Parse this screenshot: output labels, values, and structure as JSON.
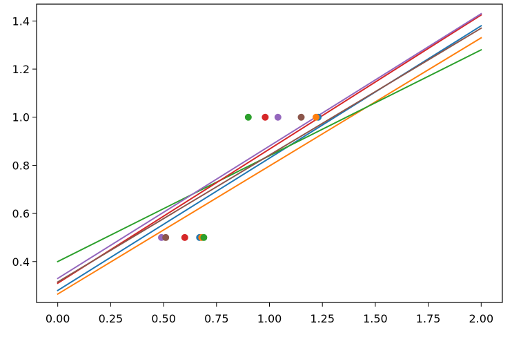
{
  "chart_data": {
    "type": "scatter",
    "title": "",
    "xlabel": "",
    "ylabel": "",
    "xlim": [
      -0.1,
      2.1
    ],
    "ylim": [
      0.23,
      1.47
    ],
    "grid": false,
    "legend": "none",
    "x_ticks": [
      0.0,
      0.25,
      0.5,
      0.75,
      1.0,
      1.25,
      1.5,
      1.75,
      2.0
    ],
    "x_tick_labels": [
      "0.00",
      "0.25",
      "0.50",
      "0.75",
      "1.00",
      "1.25",
      "1.50",
      "1.75",
      "2.00"
    ],
    "y_ticks": [
      0.4,
      0.6,
      0.8,
      1.0,
      1.2,
      1.4
    ],
    "y_tick_labels": [
      "0.4",
      "0.6",
      "0.8",
      "1.0",
      "1.2",
      "1.4"
    ],
    "series": [
      {
        "color": "#1f77b4",
        "line": {
          "x": [
            0,
            2
          ],
          "y": [
            0.28,
            1.38
          ]
        },
        "points": [
          {
            "x": 0.67,
            "y": 0.5
          },
          {
            "x": 1.23,
            "y": 1.0
          }
        ]
      },
      {
        "color": "#ff7f0e",
        "line": {
          "x": [
            0,
            2
          ],
          "y": [
            0.265,
            1.33
          ]
        },
        "points": [
          {
            "x": 0.68,
            "y": 0.5
          },
          {
            "x": 1.22,
            "y": 1.0
          }
        ]
      },
      {
        "color": "#2ca02c",
        "line": {
          "x": [
            0,
            2
          ],
          "y": [
            0.4,
            1.28
          ]
        },
        "points": [
          {
            "x": 0.69,
            "y": 0.5
          },
          {
            "x": 0.9,
            "y": 1.0
          }
        ]
      },
      {
        "color": "#d62728",
        "line": {
          "x": [
            0,
            2
          ],
          "y": [
            0.31,
            1.425
          ]
        },
        "points": [
          {
            "x": 0.6,
            "y": 0.5
          },
          {
            "x": 0.98,
            "y": 1.0
          }
        ]
      },
      {
        "color": "#9467bd",
        "line": {
          "x": [
            0,
            2
          ],
          "y": [
            0.33,
            1.43
          ]
        },
        "points": [
          {
            "x": 0.49,
            "y": 0.5
          },
          {
            "x": 1.04,
            "y": 1.0
          }
        ]
      },
      {
        "color": "#8c564b",
        "line": {
          "x": [
            0,
            2
          ],
          "y": [
            0.315,
            1.37
          ]
        },
        "points": [
          {
            "x": 0.51,
            "y": 0.5
          },
          {
            "x": 1.15,
            "y": 1.0
          }
        ]
      }
    ]
  }
}
